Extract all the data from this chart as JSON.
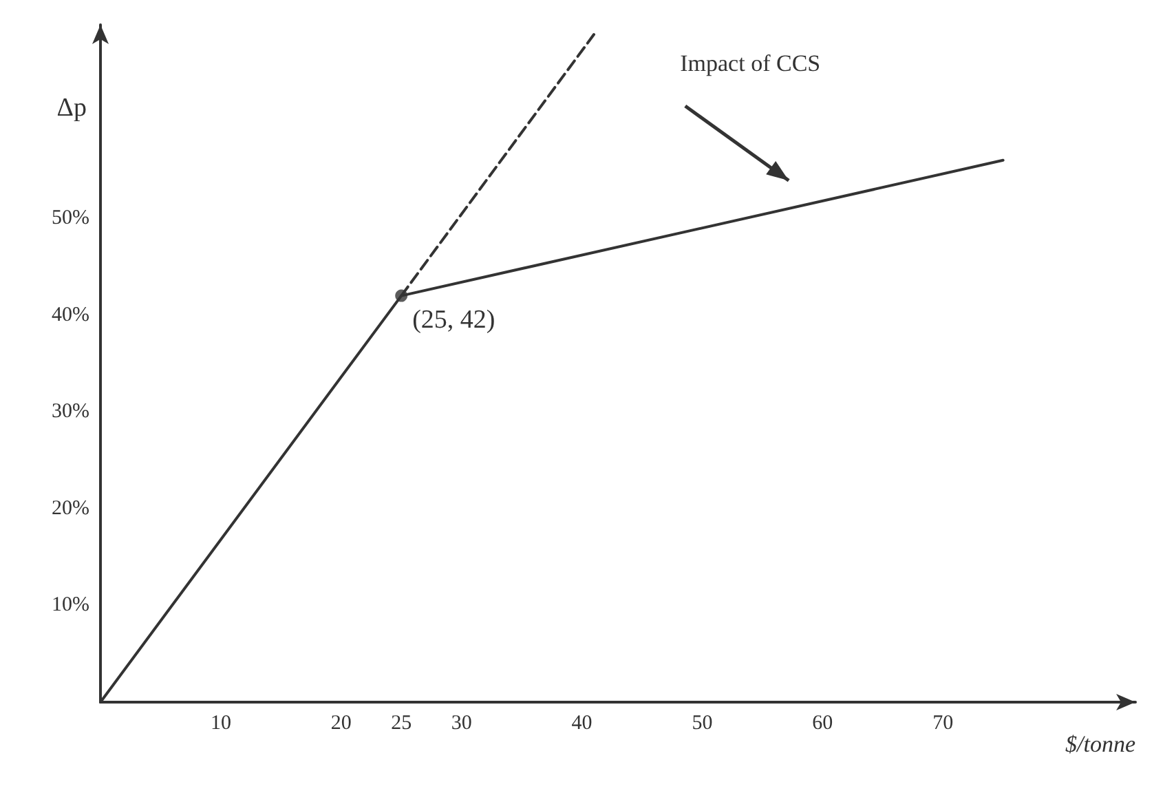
{
  "chart_data": {
    "type": "line",
    "xlabel": "$/tonne",
    "ylabel": "Δp",
    "xlim": [
      0,
      86
    ],
    "ylim": [
      0,
      70
    ],
    "xticks": [
      10,
      20,
      25,
      30,
      40,
      50,
      60,
      70
    ],
    "yticks": [
      {
        "value": 10,
        "label": "10%"
      },
      {
        "value": 20,
        "label": "20%"
      },
      {
        "value": 30,
        "label": "30%"
      },
      {
        "value": 40,
        "label": "40%"
      },
      {
        "value": 50,
        "label": "50%"
      }
    ],
    "series": [
      {
        "color": "#333333",
        "x": [
          0,
          25,
          75
        ],
        "values": [
          0,
          42,
          56
        ],
        "line_style": "solid",
        "marker": "none"
      },
      {
        "color": "#333333",
        "x": [
          25,
          41
        ],
        "values": [
          42,
          69
        ],
        "line_style": "dashed",
        "marker": "none"
      },
      {
        "type": "scatter",
        "color": "#333333",
        "x": [
          25
        ],
        "values": [
          42
        ],
        "marker": "circle"
      }
    ],
    "annotations": [
      {
        "text": "(25, 42)",
        "x": 25,
        "y": 42
      },
      "Impact of CCS"
    ],
    "grid": false
  }
}
